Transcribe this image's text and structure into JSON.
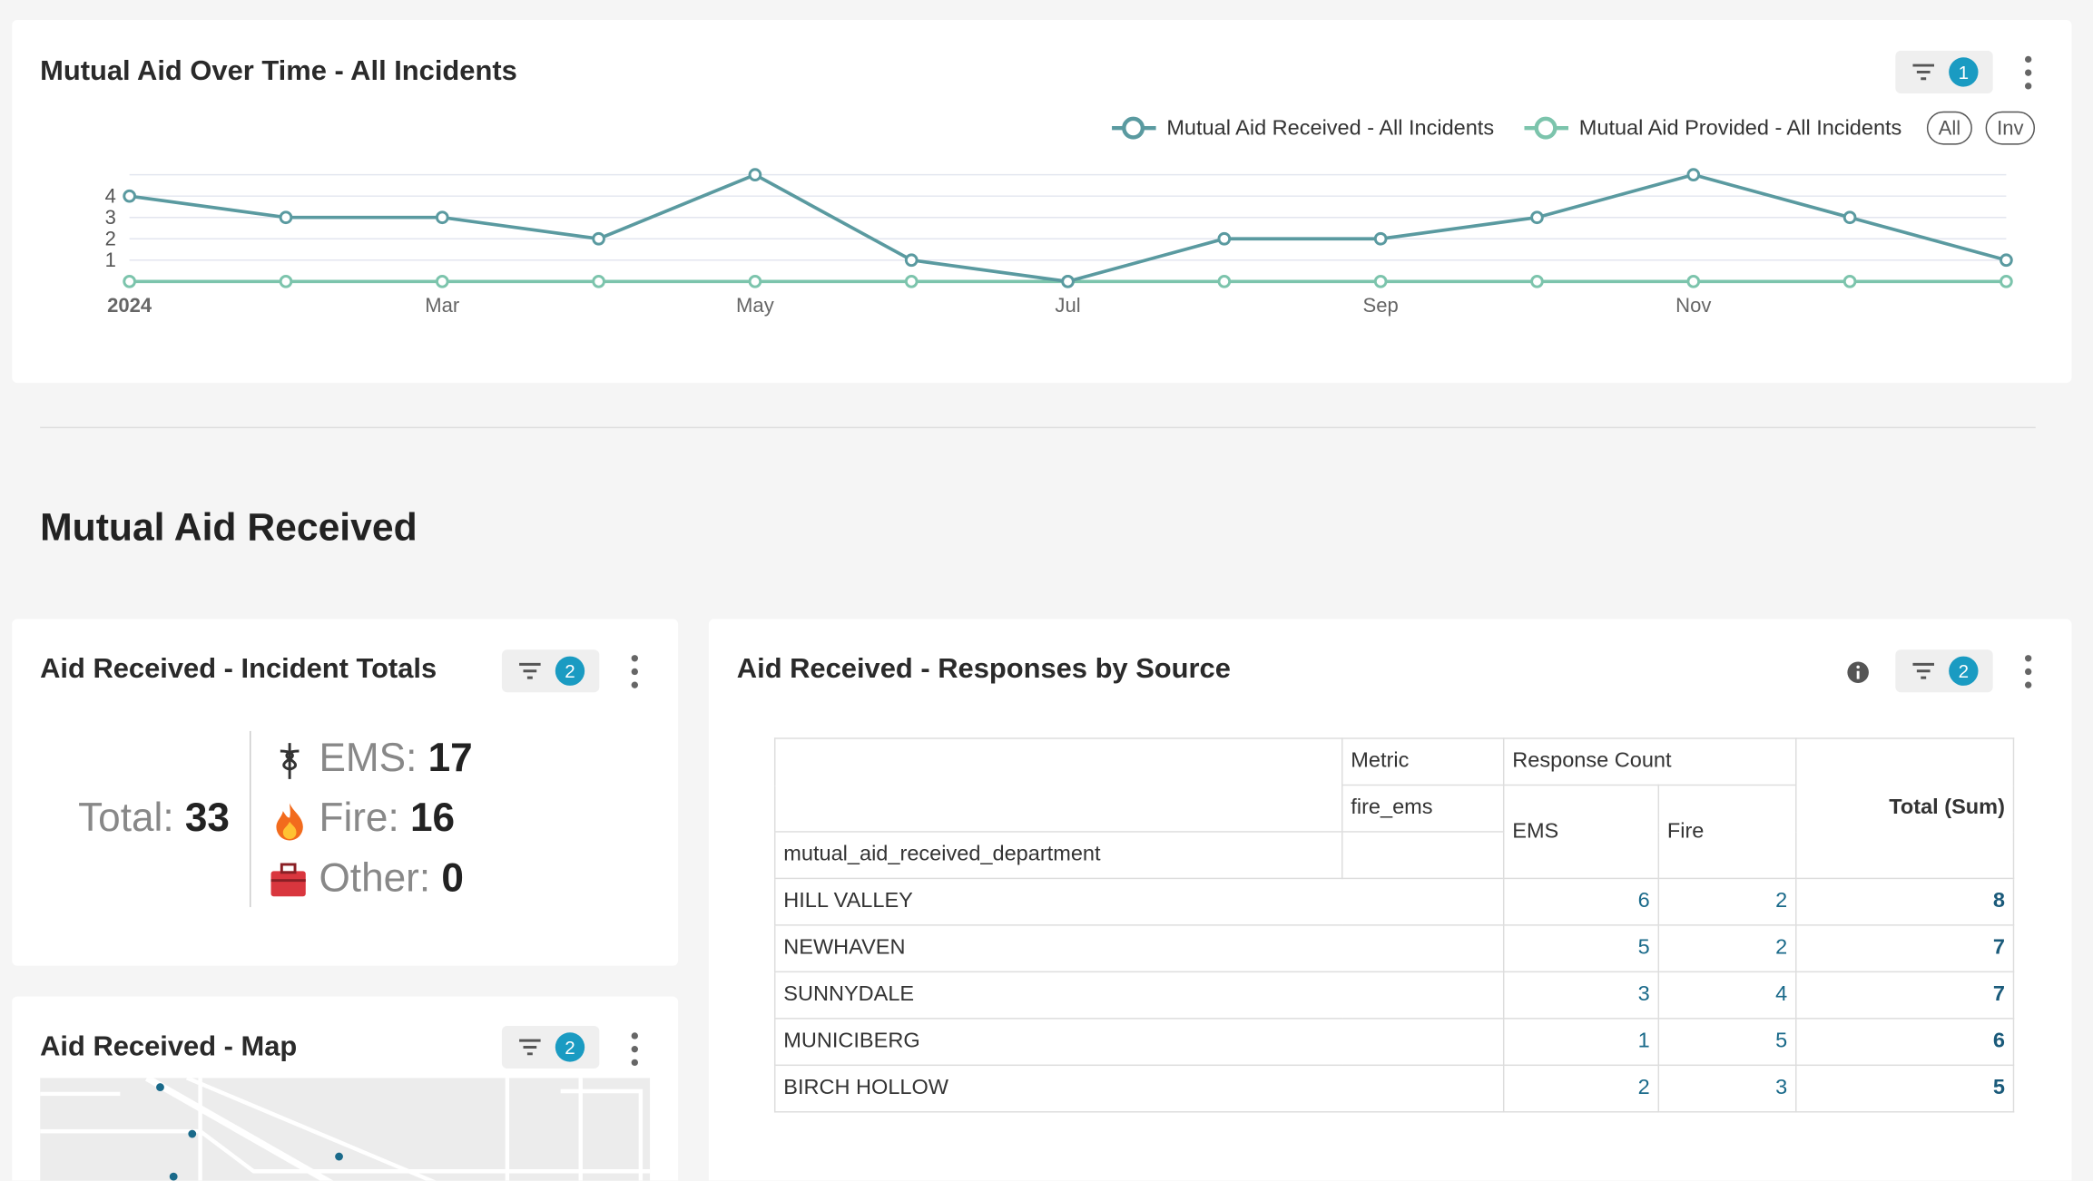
{
  "chart_data": {
    "type": "line",
    "title": "Mutual Aid Over Time - All Incidents",
    "categories": [
      "2024",
      null,
      "Mar",
      null,
      "May",
      null,
      "Jul",
      null,
      "Sep",
      null,
      "Nov",
      null,
      null
    ],
    "series": [
      {
        "name": "Mutual Aid Received - All Incidents",
        "color": "#5a9aa0",
        "values": [
          4,
          3,
          3,
          2,
          5,
          1,
          0,
          2,
          2,
          3,
          5,
          3,
          1
        ]
      },
      {
        "name": "Mutual Aid Provided - All Incidents",
        "color": "#7cc4ac",
        "values": [
          0,
          0,
          0,
          0,
          0,
          0,
          0,
          0,
          0,
          0,
          0,
          0,
          0
        ]
      }
    ],
    "ylim": [
      0,
      5
    ],
    "yticks": [
      1,
      2,
      3,
      4
    ],
    "grid": true
  },
  "dashboard": {
    "chart_panel": {
      "filter_count": 1,
      "legend_buttons": [
        "All",
        "Inv"
      ]
    },
    "section_title": "Mutual Aid Received",
    "totals_panel": {
      "title": "Aid Received - Incident Totals",
      "filter_count": 2,
      "total_label": "Total:",
      "total": 33,
      "items": [
        {
          "label": "EMS:",
          "value": 17
        },
        {
          "label": "Fire:",
          "value": 16
        },
        {
          "label": "Other:",
          "value": 0
        }
      ]
    },
    "map_panel": {
      "title": "Aid Received - Map",
      "filter_count": 2
    },
    "table_panel": {
      "title": "Aid Received - Responses by Source",
      "filter_count": 2,
      "table": {
        "metric_label": "Metric",
        "metric_group": "Response Count",
        "metric_field": "fire_ems",
        "columns": [
          "EMS",
          "Fire"
        ],
        "total_label": "Total (Sum)",
        "row_header": "mutual_aid_received_department",
        "rows": [
          {
            "name": "HILL VALLEY",
            "values": [
              6,
              2
            ],
            "total": 8
          },
          {
            "name": "NEWHAVEN",
            "values": [
              5,
              2
            ],
            "total": 7
          },
          {
            "name": "SUNNYDALE",
            "values": [
              3,
              4
            ],
            "total": 7
          },
          {
            "name": "MUNICIBERG",
            "values": [
              1,
              5
            ],
            "total": 6
          },
          {
            "name": "BIRCH HOLLOW",
            "values": [
              2,
              3
            ],
            "total": 5
          }
        ]
      }
    }
  }
}
